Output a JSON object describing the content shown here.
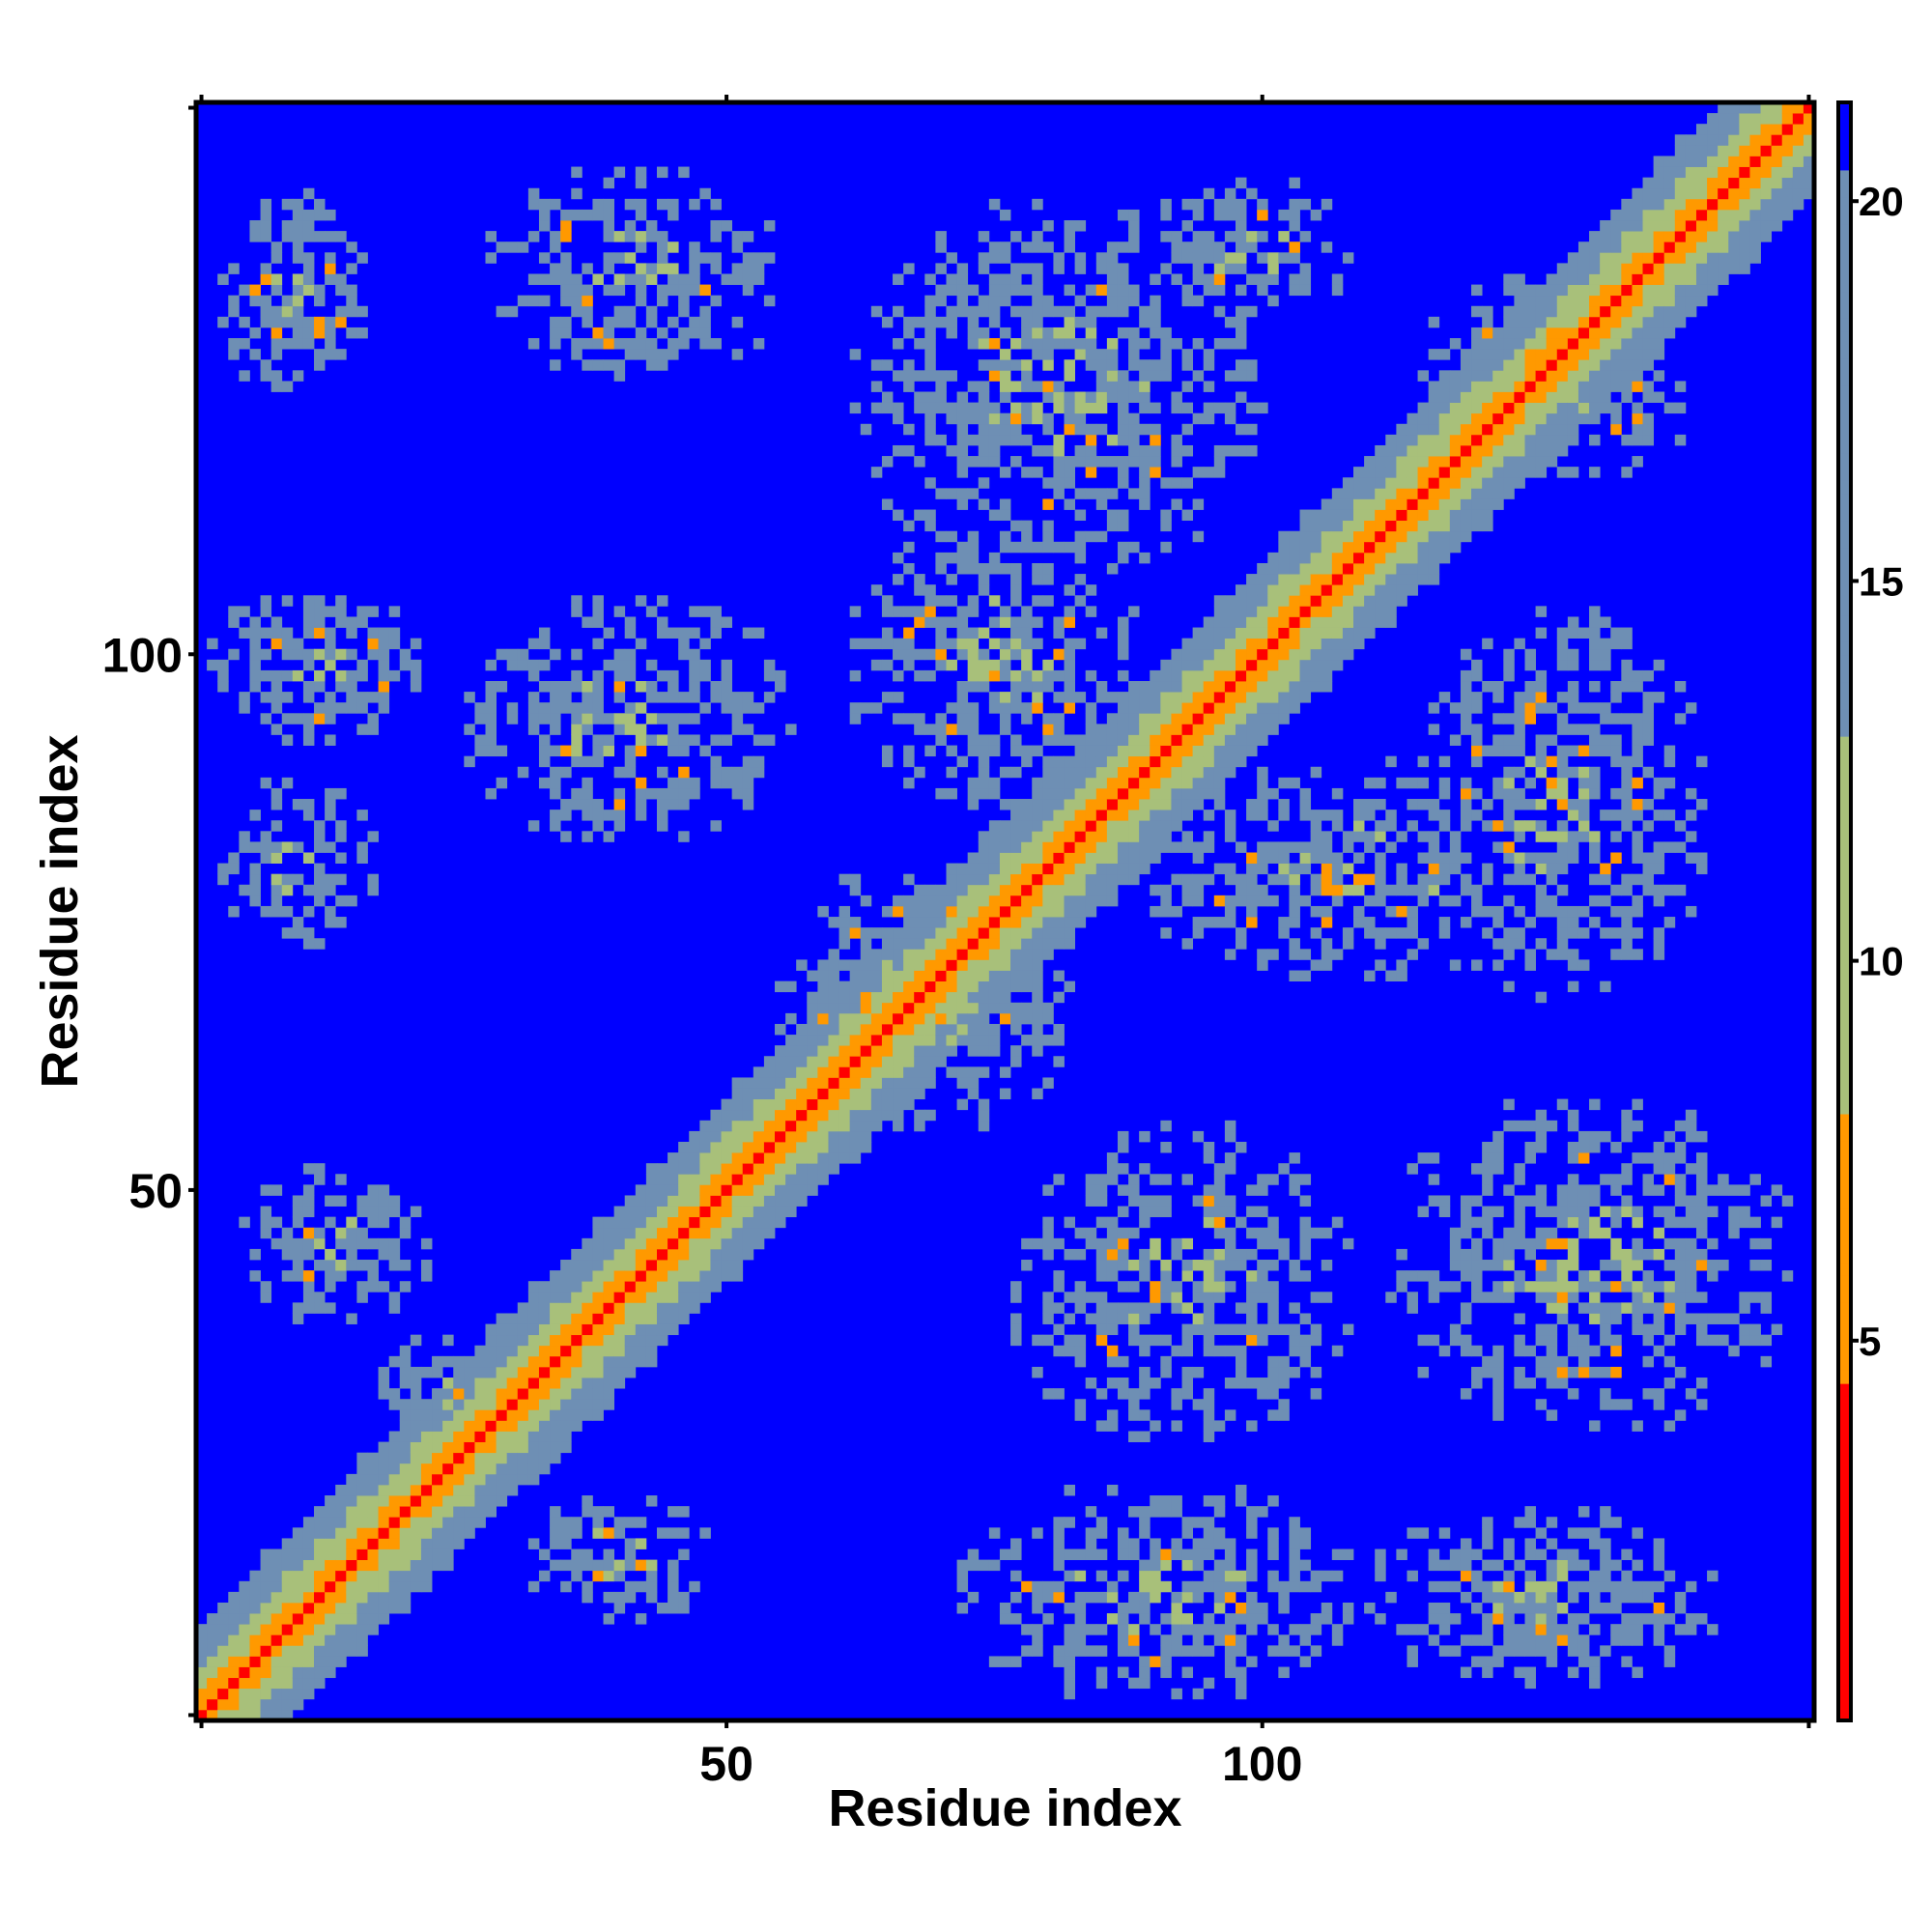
{
  "chart_data": {
    "type": "heatmap",
    "title": "",
    "xlabel": "Residue index",
    "ylabel": "Residue index",
    "n_residues": 151,
    "xlim": [
      1,
      151
    ],
    "ylim": [
      1,
      151
    ],
    "x_ticks": [
      50,
      100
    ],
    "y_ticks": [
      50,
      100
    ],
    "colorbar": {
      "ticks": [
        5,
        10,
        15,
        20
      ],
      "range": [
        0,
        21.3
      ],
      "cutoff": 8,
      "colors": {
        "close": "#ff0000",
        "near": "#ff9900",
        "mid": "#a8c07a",
        "far": "#6e8fb4",
        "background": "#0000ff"
      }
    },
    "series": [
      {
        "kind": "diagonal-band",
        "start": [
          1,
          1
        ],
        "end": [
          151,
          151
        ],
        "note_values": {
          "d0": 3.8,
          "width_residues": 6
        }
      },
      {
        "kind": "contact-cluster",
        "x": [
          3,
          16
        ],
        "y": [
          124,
          143
        ]
      },
      {
        "kind": "contact-cluster",
        "x": [
          28,
          55
        ],
        "y": [
          126,
          145
        ]
      },
      {
        "kind": "contact-cluster",
        "x": [
          62,
          100
        ],
        "y": [
          108,
          142
        ]
      },
      {
        "kind": "contact-cluster",
        "x": [
          90,
          108
        ],
        "y": [
          132,
          144
        ]
      },
      {
        "kind": "contact-cluster",
        "x": [
          115,
          140
        ],
        "y": [
          116,
          135
        ]
      },
      {
        "kind": "contact-cluster",
        "x": [
          2,
          22
        ],
        "y": [
          92,
          106
        ]
      },
      {
        "kind": "contact-cluster",
        "x": [
          26,
          56
        ],
        "y": [
          83,
          105
        ]
      },
      {
        "kind": "contact-cluster",
        "x": [
          3,
          17
        ],
        "y": [
          73,
          88
        ]
      },
      {
        "kind": "contact-cluster",
        "x": [
          62,
          88
        ],
        "y": [
          86,
          112
        ]
      },
      {
        "kind": "contact-cluster",
        "x": [
          88,
          128
        ],
        "y": [
          70,
          90
        ]
      },
      {
        "kind": "contact-cluster",
        "x": [
          115,
          141
        ],
        "y": [
          68,
          104
        ]
      },
      {
        "kind": "contact-cluster",
        "x": [
          55,
          82
        ],
        "y": [
          56,
          80
        ]
      },
      {
        "kind": "contact-cluster",
        "x": [
          5,
          22
        ],
        "y": [
          38,
          52
        ]
      },
      {
        "kind": "contact-cluster",
        "x": [
          18,
          30
        ],
        "y": [
          24,
          36
        ]
      },
      {
        "kind": "contact-cluster",
        "x": [
          77,
          108
        ],
        "y": [
          27,
          56
        ]
      },
      {
        "kind": "contact-cluster",
        "x": [
          112,
          149
        ],
        "y": [
          28,
          58
        ]
      },
      {
        "kind": "contact-cluster",
        "x": [
          32,
          48
        ],
        "y": [
          10,
          22
        ]
      },
      {
        "kind": "contact-cluster",
        "x": [
          72,
          108
        ],
        "y": [
          3,
          22
        ]
      },
      {
        "kind": "contact-cluster",
        "x": [
          110,
          142
        ],
        "y": [
          4,
          20
        ]
      }
    ]
  }
}
